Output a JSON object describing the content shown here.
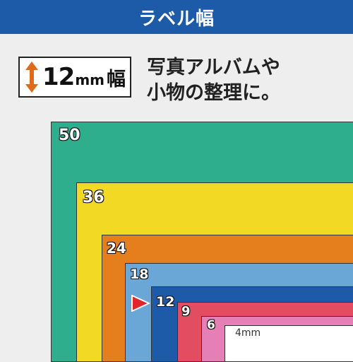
{
  "header": {
    "title": "ラベル幅",
    "bg": "#1d5aa8"
  },
  "badge": {
    "number": "12",
    "unit": "mm",
    "kanji": "幅",
    "icon": "double-arrow-vertical-icon",
    "arrow_color": "#e06a1a"
  },
  "description": {
    "line1": "写真アルバムや",
    "line2": "小物の整理に。"
  },
  "tapes": [
    {
      "label": "50",
      "color": "#2fae8e"
    },
    {
      "label": "36",
      "color": "#f2d924"
    },
    {
      "label": "24",
      "color": "#e57f1e"
    },
    {
      "label": "18",
      "color": "#6aa6d6"
    },
    {
      "label": "12",
      "color": "#1d5aa8"
    },
    {
      "label": "9",
      "color": "#e34d61"
    },
    {
      "label": "6",
      "color": "#e67fb5"
    },
    {
      "label": "4mm",
      "color": "#ffffff"
    }
  ],
  "pointer": {
    "icon": "red-triangle-pointer-icon",
    "color": "#e3242b"
  }
}
